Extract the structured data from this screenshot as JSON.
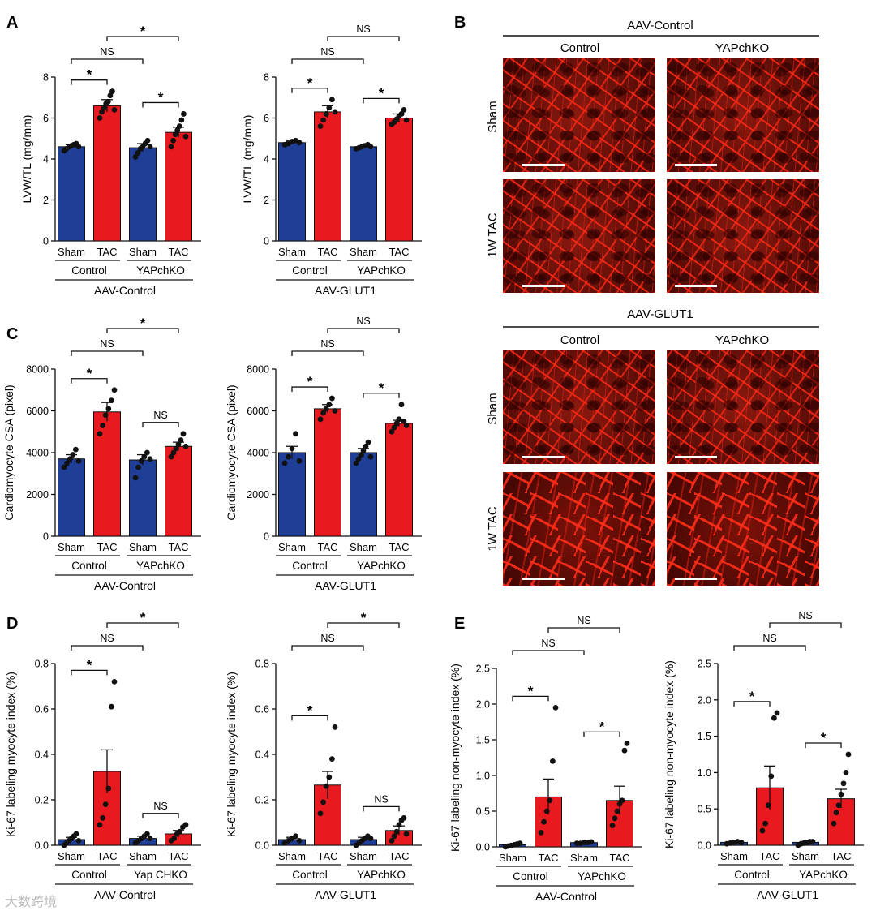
{
  "panel_labels": {
    "A": "A",
    "B": "B",
    "C": "C",
    "D": "D",
    "E": "E"
  },
  "colors": {
    "sham": "#1f3e95",
    "tac": "#e8191f",
    "axis": "#111111"
  },
  "groups": {
    "sham": "Sham",
    "tac": "TAC",
    "control": "Control",
    "yapchko": "YAPchKO",
    "yap_chko_alt": "Yap CHKO"
  },
  "aav": {
    "control": "AAV-Control",
    "glut1": "AAV-GLUT1"
  },
  "sig": {
    "star": "*",
    "ns": "NS"
  },
  "microscopy": {
    "top_title": "AAV-Control",
    "bottom_title": "AAV-GLUT1",
    "col1": "Control",
    "col2": "YAPchKO",
    "row1": "Sham",
    "row2": "1W TAC"
  },
  "watermark": "大数跨境",
  "chart_data": [
    {
      "id": "A1",
      "type": "bar",
      "ylabel": "LVW/TL (mg/mm)",
      "ylim": [
        0,
        8
      ],
      "yticks": [
        0,
        2,
        4,
        6,
        8
      ],
      "categories": [
        "Sham",
        "TAC",
        "Sham",
        "TAC"
      ],
      "subgroups": [
        "Control",
        "YAPchKO"
      ],
      "xgroup": "AAV-Control",
      "values": [
        4.6,
        6.6,
        4.55,
        5.3
      ],
      "errors": [
        0.1,
        0.3,
        0.2,
        0.25
      ],
      "points": [
        [
          4.4,
          4.5,
          4.6,
          4.65,
          4.7,
          4.75,
          4.6
        ],
        [
          6.0,
          6.3,
          6.5,
          6.7,
          6.8,
          7.1,
          7.3,
          6.4
        ],
        [
          4.1,
          4.3,
          4.5,
          4.6,
          4.75,
          4.9,
          4.6
        ],
        [
          4.6,
          4.9,
          5.2,
          5.4,
          5.6,
          5.9,
          6.2,
          5.1
        ]
      ],
      "annotations": [
        {
          "from": 0,
          "to": 1,
          "label": "*",
          "level": 1
        },
        {
          "from": 2,
          "to": 3,
          "label": "*",
          "level": 1
        },
        {
          "from": 0,
          "to": 2,
          "label": "NS",
          "level": 2
        },
        {
          "from": 1,
          "to": 3,
          "label": "*",
          "level": 3
        }
      ]
    },
    {
      "id": "A2",
      "type": "bar",
      "ylabel": "LVW/TL (mg/mm)",
      "ylim": [
        0,
        8
      ],
      "yticks": [
        0,
        2,
        4,
        6,
        8
      ],
      "categories": [
        "Sham",
        "TAC",
        "Sham",
        "TAC"
      ],
      "subgroups": [
        "Control",
        "YAPchKO"
      ],
      "xgroup": "AAV-GLUT1",
      "values": [
        4.8,
        6.3,
        4.6,
        6.0
      ],
      "errors": [
        0.08,
        0.3,
        0.05,
        0.2
      ],
      "points": [
        [
          4.7,
          4.75,
          4.85,
          4.9,
          4.8
        ],
        [
          5.6,
          5.9,
          6.2,
          6.5,
          6.9,
          6.3
        ],
        [
          4.5,
          4.55,
          4.6,
          4.65,
          4.7,
          4.6
        ],
        [
          5.7,
          5.8,
          5.95,
          6.1,
          6.2,
          6.4,
          5.9
        ]
      ],
      "annotations": [
        {
          "from": 0,
          "to": 1,
          "label": "*",
          "level": 1
        },
        {
          "from": 2,
          "to": 3,
          "label": "*",
          "level": 1
        },
        {
          "from": 0,
          "to": 2,
          "label": "NS",
          "level": 2
        },
        {
          "from": 1,
          "to": 3,
          "label": "NS",
          "level": 3
        }
      ]
    },
    {
      "id": "C1",
      "type": "bar",
      "ylabel": "Cardiomyocyte CSA (pixel)",
      "ylim": [
        0,
        8000
      ],
      "yticks": [
        0,
        2000,
        4000,
        6000,
        8000
      ],
      "categories": [
        "Sham",
        "TAC",
        "Sham",
        "TAC"
      ],
      "subgroups": [
        "Control",
        "YAPchKO"
      ],
      "xgroup": "AAV-Control",
      "values": [
        3700,
        5950,
        3650,
        4300
      ],
      "errors": [
        200,
        450,
        250,
        200
      ],
      "points": [
        [
          3300,
          3500,
          3700,
          3900,
          4150,
          3600
        ],
        [
          4900,
          5300,
          5800,
          6100,
          6500,
          7000
        ],
        [
          2800,
          3300,
          3600,
          3800,
          4000,
          3700
        ],
        [
          3800,
          4000,
          4200,
          4400,
          4600,
          4900,
          4300
        ]
      ],
      "annotations": [
        {
          "from": 0,
          "to": 1,
          "label": "*",
          "level": 1
        },
        {
          "from": 2,
          "to": 3,
          "label": "NS",
          "level": 1
        },
        {
          "from": 0,
          "to": 2,
          "label": "NS",
          "level": 2
        },
        {
          "from": 1,
          "to": 3,
          "label": "*",
          "level": 3
        }
      ]
    },
    {
      "id": "C2",
      "type": "bar",
      "ylabel": "Cardiomyocyte CSA (pixel)",
      "ylim": [
        0,
        8000
      ],
      "yticks": [
        0,
        2000,
        4000,
        6000,
        8000
      ],
      "categories": [
        "Sham",
        "TAC",
        "Sham",
        "TAC"
      ],
      "subgroups": [
        "Control",
        "YAPchKO"
      ],
      "xgroup": "AAV-GLUT1",
      "values": [
        4000,
        6100,
        4000,
        5400
      ],
      "errors": [
        300,
        200,
        200,
        150
      ],
      "points": [
        [
          3500,
          3800,
          4200,
          4900,
          3600
        ],
        [
          5600,
          5900,
          6100,
          6300,
          6600,
          6000
        ],
        [
          3500,
          3700,
          3900,
          4100,
          4300,
          4500,
          3800
        ],
        [
          5000,
          5200,
          5400,
          5600,
          6300,
          5500,
          5300
        ]
      ],
      "annotations": [
        {
          "from": 0,
          "to": 1,
          "label": "*",
          "level": 1
        },
        {
          "from": 2,
          "to": 3,
          "label": "*",
          "level": 1
        },
        {
          "from": 0,
          "to": 2,
          "label": "NS",
          "level": 2
        },
        {
          "from": 1,
          "to": 3,
          "label": "NS",
          "level": 3
        }
      ]
    },
    {
      "id": "D1",
      "type": "bar",
      "ylabel": "Ki-67 labeling myocyte index (%)",
      "ylim": [
        0,
        0.8
      ],
      "yticks": [
        0.0,
        0.2,
        0.4,
        0.6,
        0.8
      ],
      "categories": [
        "Sham",
        "TAC",
        "Sham",
        "TAC"
      ],
      "subgroups": [
        "Control",
        "Yap CHKO"
      ],
      "xgroup": "AAV-Control",
      "values": [
        0.025,
        0.325,
        0.03,
        0.05
      ],
      "errors": [
        0.01,
        0.095,
        0.01,
        0.015
      ],
      "points": [
        [
          0.0,
          0.01,
          0.02,
          0.03,
          0.04,
          0.05,
          0.02
        ],
        [
          0.09,
          0.12,
          0.18,
          0.25,
          0.61,
          0.72
        ],
        [
          0.01,
          0.02,
          0.03,
          0.04,
          0.05,
          0.03
        ],
        [
          0.02,
          0.03,
          0.05,
          0.06,
          0.08,
          0.09
        ]
      ],
      "annotations": [
        {
          "from": 0,
          "to": 1,
          "label": "*",
          "level": 1
        },
        {
          "from": 2,
          "to": 3,
          "label": "NS",
          "level": 1
        },
        {
          "from": 0,
          "to": 2,
          "label": "NS",
          "level": 2
        },
        {
          "from": 1,
          "to": 3,
          "label": "*",
          "level": 3
        }
      ]
    },
    {
      "id": "D2",
      "type": "bar",
      "ylabel": "Ki-67 labeling myocyte index (%)",
      "ylim": [
        0,
        0.8
      ],
      "yticks": [
        0.0,
        0.2,
        0.4,
        0.6,
        0.8
      ],
      "categories": [
        "Sham",
        "TAC",
        "Sham",
        "TAC"
      ],
      "subgroups": [
        "Control",
        "YAPchKO"
      ],
      "xgroup": "AAV-GLUT1",
      "values": [
        0.025,
        0.265,
        0.025,
        0.065
      ],
      "errors": [
        0.01,
        0.06,
        0.01,
        0.02
      ],
      "points": [
        [
          0.01,
          0.02,
          0.03,
          0.04,
          0.02
        ],
        [
          0.14,
          0.19,
          0.26,
          0.3,
          0.38,
          0.52
        ],
        [
          0.0,
          0.01,
          0.02,
          0.03,
          0.04,
          0.03
        ],
        [
          0.02,
          0.04,
          0.06,
          0.09,
          0.11,
          0.12,
          0.05
        ]
      ],
      "annotations": [
        {
          "from": 0,
          "to": 1,
          "label": "*",
          "level": 1
        },
        {
          "from": 2,
          "to": 3,
          "label": "NS",
          "level": 1
        },
        {
          "from": 0,
          "to": 2,
          "label": "NS",
          "level": 2
        },
        {
          "from": 1,
          "to": 3,
          "label": "*",
          "level": 3
        }
      ]
    },
    {
      "id": "E1",
      "type": "bar",
      "ylabel": "Ki-67 labeling non-myocyte index (%)",
      "ylim": [
        0,
        2.5
      ],
      "yticks": [
        0.0,
        0.5,
        1.0,
        1.5,
        2.0,
        2.5
      ],
      "categories": [
        "Sham",
        "TAC",
        "Sham",
        "TAC"
      ],
      "subgroups": [
        "Control",
        "YAPchKO"
      ],
      "xgroup": "AAV-Control",
      "values": [
        0.03,
        0.7,
        0.06,
        0.65
      ],
      "errors": [
        0.01,
        0.25,
        0.01,
        0.2
      ],
      "points": [
        [
          0.0,
          0.01,
          0.02,
          0.03,
          0.04,
          0.05
        ],
        [
          0.2,
          0.35,
          0.5,
          0.65,
          1.2,
          1.95
        ],
        [
          0.05,
          0.05,
          0.06,
          0.06,
          0.07
        ],
        [
          0.3,
          0.4,
          0.5,
          0.6,
          0.65,
          1.35,
          1.45
        ]
      ],
      "annotations": [
        {
          "from": 0,
          "to": 1,
          "label": "*",
          "level": 1
        },
        {
          "from": 2,
          "to": 3,
          "label": "*",
          "level": 1
        },
        {
          "from": 0,
          "to": 2,
          "label": "NS",
          "level": 2
        },
        {
          "from": 1,
          "to": 3,
          "label": "NS",
          "level": 3
        }
      ]
    },
    {
      "id": "E2",
      "type": "bar",
      "ylabel": "Ki-67 labeling non-myocyte index (%)",
      "ylim": [
        0,
        2.5
      ],
      "yticks": [
        0.0,
        0.5,
        1.0,
        1.5,
        2.0,
        2.5
      ],
      "categories": [
        "Sham",
        "TAC",
        "Sham",
        "TAC"
      ],
      "subgroups": [
        "Control",
        "YAPchKO"
      ],
      "xgroup": "AAV-GLUT1",
      "values": [
        0.04,
        0.79,
        0.04,
        0.64
      ],
      "errors": [
        0.01,
        0.3,
        0.01,
        0.13
      ],
      "points": [
        [
          0.02,
          0.03,
          0.04,
          0.05,
          0.04
        ],
        [
          0.2,
          0.3,
          0.55,
          0.95,
          1.75,
          1.82
        ],
        [
          0.0,
          0.02,
          0.03,
          0.04,
          0.05,
          0.05
        ],
        [
          0.3,
          0.45,
          0.55,
          0.7,
          0.85,
          1.0,
          1.25
        ]
      ],
      "annotations": [
        {
          "from": 0,
          "to": 1,
          "label": "*",
          "level": 1
        },
        {
          "from": 2,
          "to": 3,
          "label": "*",
          "level": 1
        },
        {
          "from": 0,
          "to": 2,
          "label": "NS",
          "level": 2
        },
        {
          "from": 1,
          "to": 3,
          "label": "NS",
          "level": 3
        }
      ]
    }
  ]
}
